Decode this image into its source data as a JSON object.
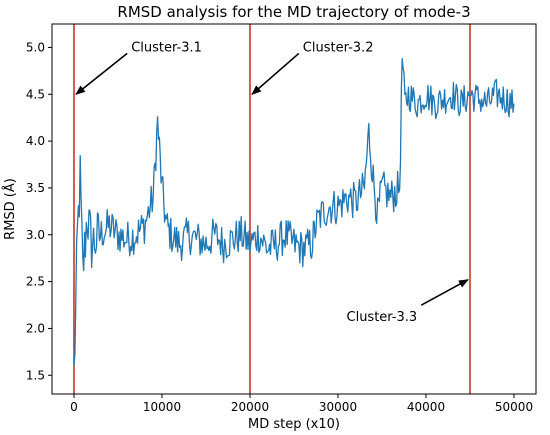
{
  "chart_data": {
    "type": "line",
    "title": "RMSD analysis for the MD trajectory of mode-3",
    "xlabel": "MD step (x10)",
    "ylabel": "RMSD (Å)",
    "xlim": [
      -2500,
      52500
    ],
    "ylim": [
      1.3,
      5.25
    ],
    "xticks": [
      0,
      10000,
      20000,
      30000,
      40000,
      50000
    ],
    "yticks": [
      1.5,
      2.0,
      2.5,
      3.0,
      3.5,
      4.0,
      4.5,
      5.0
    ],
    "xtick_labels": [
      "0",
      "10000",
      "20000",
      "30000",
      "40000",
      "50000"
    ],
    "ytick_labels": [
      "1.5",
      "2.0",
      "2.5",
      "3.0",
      "3.5",
      "4.0",
      "4.5",
      "5.0"
    ],
    "grid": false,
    "series": [
      {
        "color": "#1f77b4",
        "x": [
          0,
          200,
          400,
          700,
          1000,
          1500,
          2000,
          3000,
          4000,
          5000,
          6000,
          7000,
          8000,
          9000,
          9500,
          10000,
          10500,
          11000,
          12000,
          13000,
          14000,
          15000,
          16000,
          17000,
          18000,
          19000,
          20000,
          21000,
          22000,
          23000,
          24000,
          25000,
          26000,
          27000,
          27500,
          28000,
          29000,
          30000,
          31000,
          32000,
          33000,
          33500,
          34000,
          34500,
          35000,
          36000,
          37000,
          37300,
          37600,
          38000,
          39000,
          40000,
          41000,
          42000,
          43000,
          44000,
          45000,
          46000,
          47000,
          48000,
          49000,
          50000
        ],
        "y": [
          1.5,
          2.2,
          3.0,
          3.6,
          2.6,
          3.2,
          2.9,
          3.0,
          3.1,
          3.0,
          2.95,
          3.0,
          3.1,
          3.4,
          4.2,
          3.5,
          3.1,
          3.0,
          2.9,
          3.0,
          2.95,
          2.9,
          3.0,
          2.9,
          2.95,
          3.0,
          2.9,
          3.0,
          2.85,
          2.9,
          3.0,
          2.9,
          2.85,
          2.9,
          3.1,
          3.2,
          3.3,
          3.3,
          3.4,
          3.35,
          3.5,
          4.1,
          3.6,
          3.2,
          3.5,
          3.4,
          3.5,
          4.9,
          4.4,
          4.5,
          4.4,
          4.5,
          4.4,
          4.45,
          4.5,
          4.4,
          4.5,
          4.45,
          4.4,
          4.5,
          4.45,
          4.4
        ]
      }
    ],
    "vlines": [
      {
        "x": 0,
        "color": "#c0392b"
      },
      {
        "x": 20000,
        "color": "#c0392b"
      },
      {
        "x": 45000,
        "color": "#c0392b"
      }
    ],
    "annotations": [
      {
        "text": "Cluster-3.1",
        "point_x": 0,
        "point_y": 4.5,
        "text_x": 6500,
        "text_y": 5.0
      },
      {
        "text": "Cluster-3.2",
        "point_x": 20000,
        "point_y": 4.5,
        "text_x": 26000,
        "text_y": 5.0
      },
      {
        "text": "Cluster-3.3",
        "point_x": 45000,
        "point_y": 2.52,
        "text_x": 39000,
        "text_y": 2.12
      }
    ]
  }
}
